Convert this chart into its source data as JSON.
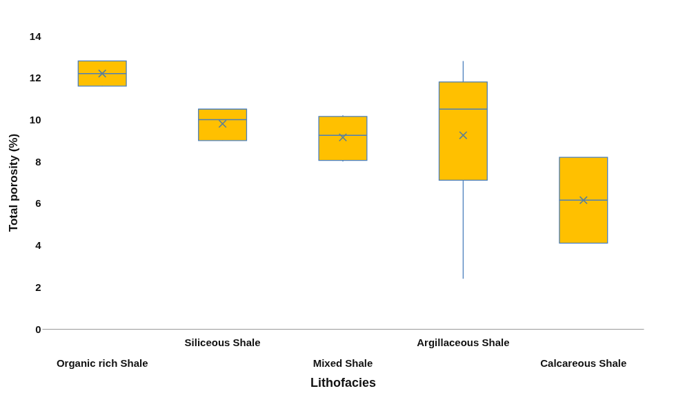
{
  "chart_data": {
    "type": "box",
    "xlabel": "Lithofacies",
    "ylabel": "Total porosity (%)",
    "categories": [
      "Organic rich Shale",
      "Siliceous Shale",
      "Mixed Shale",
      "Argillaceous Shale",
      "Calcareous Shale"
    ],
    "boxes": [
      {
        "low": 11.6,
        "q1": 11.6,
        "median": 12.2,
        "q3": 12.8,
        "high": 12.8,
        "mean": 12.2
      },
      {
        "low": 9.0,
        "q1": 9.0,
        "median": 10.0,
        "q3": 10.5,
        "high": 10.5,
        "mean": 9.8
      },
      {
        "low": 8.0,
        "q1": 8.05,
        "median": 9.25,
        "q3": 10.15,
        "high": 10.2,
        "mean": 9.15
      },
      {
        "low": 2.4,
        "q1": 7.1,
        "median": 10.5,
        "q3": 11.8,
        "high": 12.8,
        "mean": 9.25
      },
      {
        "low": 4.1,
        "q1": 4.1,
        "median": 6.15,
        "q3": 8.2,
        "high": 8.2,
        "mean": 6.15
      }
    ],
    "color": "#ffc000",
    "ylim": [
      0,
      14
    ],
    "yticks": [
      0,
      2,
      4,
      6,
      8,
      10,
      12,
      14
    ],
    "grid": false,
    "marker": "cross"
  }
}
